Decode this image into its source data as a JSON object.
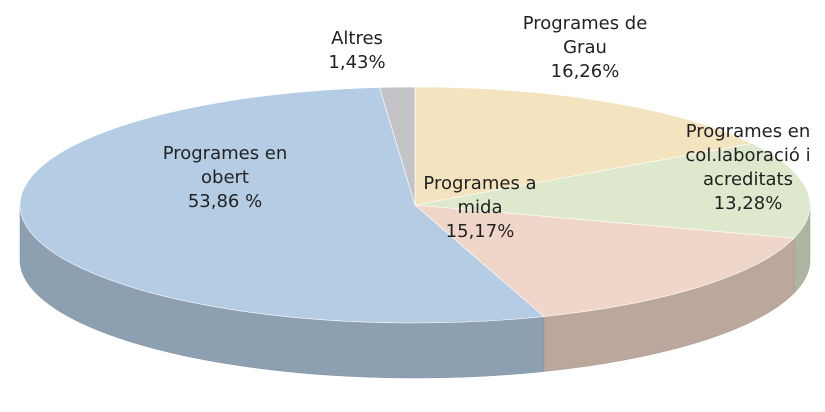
{
  "chart_data": {
    "type": "pie",
    "categories": [
      "Programes de Grau",
      "Programes en col.laboració i acreditats",
      "Programes a mida",
      "Programes en obert",
      "Altres"
    ],
    "values": [
      16.26,
      13.28,
      15.17,
      53.86,
      1.43
    ],
    "value_labels": [
      "16,26%",
      "13,28%",
      "15,17%",
      "53,86 %",
      "1,43%"
    ],
    "colors": [
      "#f3e4bf",
      "#dde8cc",
      "#f0d6c8",
      "#b5cde4",
      "#c4c4c8"
    ]
  }
}
